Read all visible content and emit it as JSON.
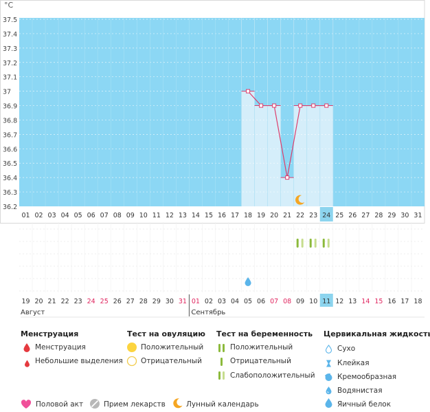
{
  "chart": {
    "unit_label": "°C",
    "y_tick_labels": [
      "37.5",
      "37.4",
      "37.3",
      "37.2",
      "37.1",
      "37",
      "36.9",
      "36.8",
      "36.7",
      "36.6",
      "36.5",
      "36.4",
      "36.3",
      "36.2"
    ],
    "y_min": 36.2,
    "y_max": 37.5,
    "cycle_days": [
      "01",
      "02",
      "03",
      "04",
      "05",
      "06",
      "07",
      "08",
      "09",
      "10",
      "11",
      "12",
      "13",
      "14",
      "15",
      "16",
      "17",
      "18",
      "19",
      "20",
      "21",
      "22",
      "23",
      "24",
      "25",
      "26",
      "27",
      "28",
      "29",
      "30",
      "31"
    ],
    "current_cycle_day": "24",
    "current_date": "11",
    "recorded_temperatures": [
      {
        "cycle_day": "18",
        "temp": 37.0
      },
      {
        "cycle_day": "19",
        "temp": 36.9
      },
      {
        "cycle_day": "20",
        "temp": 36.9
      },
      {
        "cycle_day": "21",
        "temp": 36.4
      },
      {
        "cycle_day": "22",
        "temp": 36.9
      },
      {
        "cycle_day": "23",
        "temp": 36.9
      },
      {
        "cycle_day": "24",
        "temp": 36.9
      }
    ],
    "calendar_dates": [
      {
        "label": "19",
        "weekend": false
      },
      {
        "label": "20",
        "weekend": false
      },
      {
        "label": "21",
        "weekend": false
      },
      {
        "label": "22",
        "weekend": false
      },
      {
        "label": "23",
        "weekend": false
      },
      {
        "label": "24",
        "weekend": true
      },
      {
        "label": "25",
        "weekend": true
      },
      {
        "label": "26",
        "weekend": false
      },
      {
        "label": "27",
        "weekend": false
      },
      {
        "label": "28",
        "weekend": false
      },
      {
        "label": "29",
        "weekend": false
      },
      {
        "label": "30",
        "weekend": false
      },
      {
        "label": "31",
        "weekend": true
      },
      {
        "label": "01",
        "weekend": true
      },
      {
        "label": "02",
        "weekend": false
      },
      {
        "label": "03",
        "weekend": false
      },
      {
        "label": "04",
        "weekend": false
      },
      {
        "label": "05",
        "weekend": false
      },
      {
        "label": "06",
        "weekend": false
      },
      {
        "label": "07",
        "weekend": true
      },
      {
        "label": "08",
        "weekend": true
      },
      {
        "label": "09",
        "weekend": false
      },
      {
        "label": "10",
        "weekend": false
      },
      {
        "label": "11",
        "weekend": false
      },
      {
        "label": "12",
        "weekend": false
      },
      {
        "label": "13",
        "weekend": false
      },
      {
        "label": "14",
        "weekend": true
      },
      {
        "label": "15",
        "weekend": true
      },
      {
        "label": "16",
        "weekend": false
      },
      {
        "label": "17",
        "weekend": false
      },
      {
        "label": "18",
        "weekend": false
      }
    ],
    "months": [
      {
        "label": "Август",
        "start_col": 0
      },
      {
        "label": "Сентябрь",
        "start_col": 13
      }
    ],
    "moon_marker_day": "22",
    "pregnancy_tests": [
      {
        "cycle_day": "22",
        "result": "positive"
      },
      {
        "cycle_day": "22",
        "result": "weak"
      },
      {
        "cycle_day": "23",
        "result": "positive"
      },
      {
        "cycle_day": "23",
        "result": "weak"
      },
      {
        "cycle_day": "24",
        "result": "positive"
      },
      {
        "cycle_day": "24",
        "result": "weak"
      }
    ],
    "fluid_marks": [
      {
        "cycle_day": "18",
        "type": "watery"
      }
    ],
    "colors": {
      "background_band": "#8cd7f4",
      "recorded_column": "#d5eefa",
      "today_column": "#8cd4ee",
      "line": "#dd3c6a",
      "weekend_text": "#e0245e",
      "moon": "#f5a623",
      "test_positive": "#8cba3c",
      "test_weak": "#c6dd8e",
      "fluid": "#5bb5ea"
    }
  },
  "legend": {
    "menstruation": {
      "title": "Менструация",
      "items": [
        {
          "label": "Менструация",
          "icon": "drop-red-icon"
        },
        {
          "label": "Небольшие выделения",
          "icon": "drop-small-red-icon"
        }
      ]
    },
    "ovulation_test": {
      "title": "Тест на овуляцию",
      "items": [
        {
          "label": "Положительный",
          "icon": "yellow-circle-icon"
        },
        {
          "label": "Отрицательный",
          "icon": "hollow-circle-icon"
        }
      ]
    },
    "pregnancy_test": {
      "title": "Тест на беременность",
      "items": [
        {
          "label": "Положительный",
          "icon": "double-bar-icon"
        },
        {
          "label": "Отрицательный",
          "icon": "single-bar-icon"
        },
        {
          "label": "Слабоположительный",
          "icon": "faint-bar-icon"
        }
      ]
    },
    "cervical_fluid": {
      "title": "Цервикальная жидкость",
      "items": [
        {
          "label": "Сухо",
          "icon": "dry-drop-icon"
        },
        {
          "label": "Клейкая",
          "icon": "sticky-icon"
        },
        {
          "label": "Кремообразная",
          "icon": "creamy-icon"
        },
        {
          "label": "Водянистая",
          "icon": "watery-drop-icon"
        },
        {
          "label": "Яичный белок",
          "icon": "egg-white-drop-icon"
        }
      ]
    },
    "bottom": [
      {
        "label": "Половой акт",
        "icon": "heart-icon"
      },
      {
        "label": "Прием лекарств",
        "icon": "pill-icon"
      },
      {
        "label": "Лунный календарь",
        "icon": "moon-icon"
      }
    ]
  }
}
